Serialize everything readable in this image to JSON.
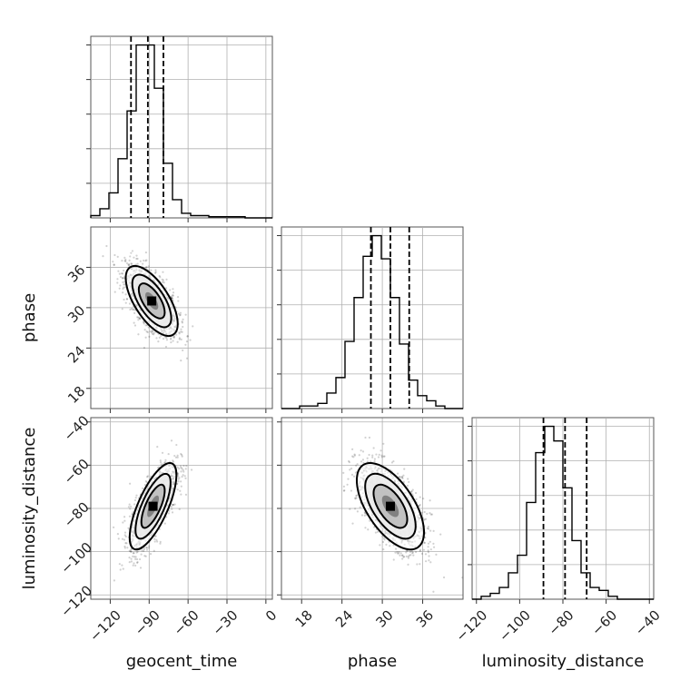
{
  "chart_data": {
    "type": "corner",
    "grid": true,
    "parameters": [
      "geocent_time",
      "phase",
      "luminosity_distance"
    ],
    "xlabels": [
      "geocent_time",
      "phase",
      "luminosity_distance"
    ],
    "ylabels": [
      "",
      "phase",
      "luminosity_distance"
    ],
    "xlim": {
      "geocent_time": [
        -135,
        5
      ],
      "phase": [
        15,
        42
      ],
      "luminosity_distance": [
        -122,
        -38
      ]
    },
    "ticks": {
      "geocent_time": [
        -120,
        -90,
        -60,
        -30,
        0
      ],
      "phase": [
        18,
        24,
        30,
        36
      ],
      "luminosity_distance": [
        -120,
        -100,
        -80,
        -60,
        -40
      ]
    },
    "tick_labels": {
      "geocent_time": [
        "−120",
        "−90",
        "−60",
        "−30",
        "0"
      ],
      "phase": [
        "18",
        "24",
        "30",
        "36"
      ],
      "luminosity_distance": [
        "−120",
        "−100",
        "−80",
        "−60",
        "−40"
      ]
    },
    "histograms": [
      {
        "param": "geocent_time",
        "bin_start": -135,
        "bin_width": 7,
        "counts": [
          1,
          4,
          11,
          26,
          47,
          76,
          76,
          57,
          24,
          8,
          2,
          1,
          1,
          0.5,
          0.5,
          0.5,
          0.5,
          0,
          0,
          0
        ],
        "quantiles": [
          -104,
          -91,
          -79
        ]
      },
      {
        "param": "phase",
        "bin_start": 15,
        "bin_width": 1.35,
        "counts": [
          0,
          0,
          1,
          1,
          2,
          6,
          12,
          26,
          43,
          59,
          67,
          58,
          43,
          25,
          11,
          5,
          3,
          1,
          0,
          0
        ],
        "quantiles": [
          28.3,
          31.2,
          34.0
        ]
      },
      {
        "param": "luminosity_distance",
        "bin_start": -122,
        "bin_width": 4.2,
        "counts": [
          0,
          1,
          2,
          4,
          9,
          15,
          33,
          50,
          59,
          54,
          38,
          20,
          9,
          4,
          3,
          1,
          0,
          0,
          0,
          0
        ],
        "quantiles": [
          -89,
          -79,
          -69
        ]
      }
    ],
    "posterior_2d": [
      {
        "x": "geocent_time",
        "y": "phase",
        "mean": [
          -88,
          31
        ],
        "std": [
          10,
          2.6
        ],
        "correlation": -0.65
      },
      {
        "x": "geocent_time",
        "y": "luminosity_distance",
        "mean": [
          -87,
          -79
        ],
        "std": [
          9,
          10
        ],
        "correlation": 0.72
      },
      {
        "x": "phase",
        "y": "luminosity_distance",
        "mean": [
          31.2,
          -79
        ],
        "std": [
          2.5,
          10
        ],
        "correlation": -0.6
      }
    ]
  }
}
